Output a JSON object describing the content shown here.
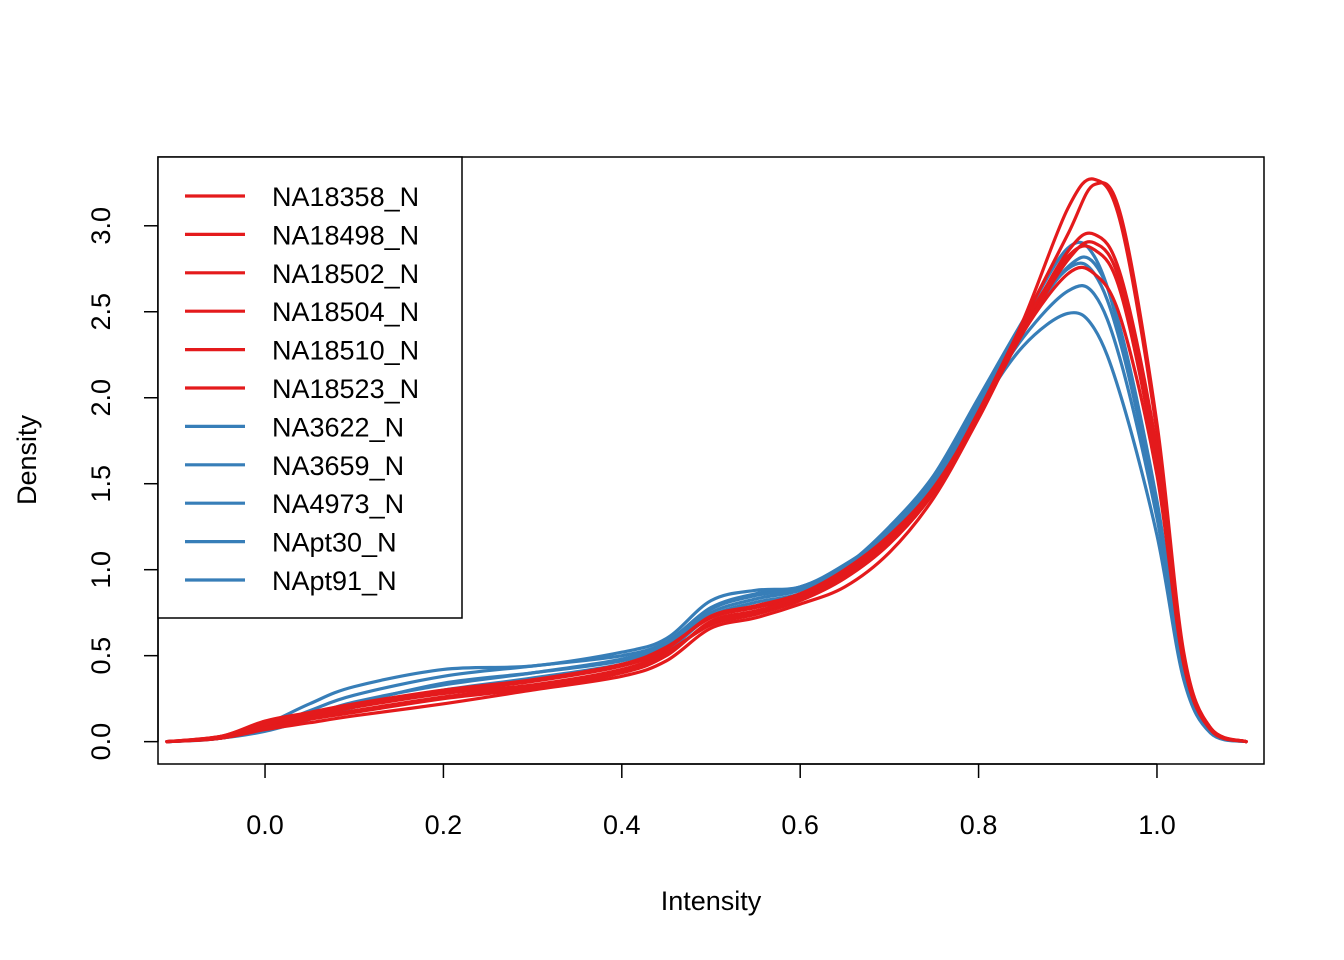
{
  "chart_data": {
    "type": "line",
    "xlabel": "Intensity",
    "ylabel": "Density",
    "xlim": [
      -0.12,
      1.12
    ],
    "ylim": [
      -0.13,
      3.4
    ],
    "x_ticks": [
      0.0,
      0.2,
      0.4,
      0.6,
      0.8,
      1.0
    ],
    "x_tick_labels": [
      "0.0",
      "0.2",
      "0.4",
      "0.6",
      "0.8",
      "1.0"
    ],
    "y_ticks": [
      0.0,
      0.5,
      1.0,
      1.5,
      2.0,
      2.5,
      3.0
    ],
    "y_tick_labels": [
      "0.0",
      "0.5",
      "1.0",
      "1.5",
      "2.0",
      "2.5",
      "3.0"
    ],
    "grid": false,
    "legend_position": "top-left",
    "colors": {
      "group_a": "#e41a1c",
      "group_b": "#377eb8"
    },
    "series": [
      {
        "name": "NA18358_N",
        "color": "#e41a1c",
        "x": [
          -0.11,
          -0.05,
          0.0,
          0.05,
          0.1,
          0.2,
          0.3,
          0.4,
          0.45,
          0.5,
          0.55,
          0.6,
          0.65,
          0.7,
          0.75,
          0.8,
          0.85,
          0.9,
          0.93,
          0.96,
          1.0,
          1.03,
          1.06,
          1.1
        ],
        "y": [
          0.0,
          0.02,
          0.09,
          0.15,
          0.2,
          0.28,
          0.33,
          0.42,
          0.52,
          0.68,
          0.74,
          0.82,
          0.95,
          1.15,
          1.45,
          1.9,
          2.45,
          3.1,
          3.27,
          3.0,
          1.8,
          0.5,
          0.08,
          0.0
        ]
      },
      {
        "name": "NA18498_N",
        "color": "#e41a1c",
        "x": [
          -0.11,
          -0.05,
          0.0,
          0.05,
          0.1,
          0.2,
          0.3,
          0.4,
          0.45,
          0.5,
          0.55,
          0.6,
          0.65,
          0.7,
          0.75,
          0.8,
          0.85,
          0.9,
          0.93,
          0.96,
          1.0,
          1.03,
          1.06,
          1.1
        ],
        "y": [
          0.0,
          0.03,
          0.12,
          0.17,
          0.22,
          0.3,
          0.36,
          0.45,
          0.55,
          0.72,
          0.78,
          0.84,
          0.98,
          1.18,
          1.47,
          1.9,
          2.4,
          2.85,
          2.95,
          2.7,
          1.7,
          0.5,
          0.08,
          0.0
        ]
      },
      {
        "name": "NA18502_N",
        "color": "#e41a1c",
        "x": [
          -0.11,
          -0.05,
          0.0,
          0.05,
          0.1,
          0.2,
          0.3,
          0.4,
          0.45,
          0.5,
          0.55,
          0.6,
          0.65,
          0.7,
          0.75,
          0.8,
          0.85,
          0.9,
          0.93,
          0.96,
          1.0,
          1.03,
          1.06,
          1.1
        ],
        "y": [
          0.0,
          0.02,
          0.07,
          0.11,
          0.15,
          0.22,
          0.3,
          0.38,
          0.47,
          0.66,
          0.72,
          0.8,
          0.9,
          1.1,
          1.42,
          1.88,
          2.38,
          2.72,
          2.72,
          2.45,
          1.55,
          0.45,
          0.07,
          0.0
        ]
      },
      {
        "name": "NA18504_N",
        "color": "#e41a1c",
        "x": [
          -0.11,
          -0.05,
          0.0,
          0.05,
          0.1,
          0.2,
          0.3,
          0.4,
          0.45,
          0.5,
          0.55,
          0.6,
          0.65,
          0.7,
          0.75,
          0.8,
          0.85,
          0.9,
          0.93,
          0.96,
          1.0,
          1.03,
          1.06,
          1.1
        ],
        "y": [
          0.0,
          0.02,
          0.08,
          0.13,
          0.17,
          0.25,
          0.31,
          0.4,
          0.5,
          0.7,
          0.76,
          0.83,
          0.96,
          1.16,
          1.46,
          1.92,
          2.44,
          2.95,
          3.24,
          3.05,
          1.85,
          0.52,
          0.08,
          0.0
        ]
      },
      {
        "name": "NA18510_N",
        "color": "#e41a1c",
        "x": [
          -0.11,
          -0.05,
          0.0,
          0.05,
          0.1,
          0.2,
          0.3,
          0.4,
          0.45,
          0.5,
          0.55,
          0.6,
          0.65,
          0.7,
          0.75,
          0.8,
          0.85,
          0.9,
          0.93,
          0.96,
          1.0,
          1.03,
          1.06,
          1.1
        ],
        "y": [
          0.0,
          0.03,
          0.1,
          0.16,
          0.21,
          0.29,
          0.35,
          0.44,
          0.54,
          0.73,
          0.79,
          0.86,
          1.0,
          1.2,
          1.48,
          1.9,
          2.38,
          2.8,
          2.9,
          2.65,
          1.65,
          0.48,
          0.08,
          0.0
        ]
      },
      {
        "name": "NA18523_N",
        "color": "#e41a1c",
        "x": [
          -0.11,
          -0.05,
          0.0,
          0.05,
          0.1,
          0.2,
          0.3,
          0.4,
          0.45,
          0.5,
          0.55,
          0.6,
          0.65,
          0.7,
          0.75,
          0.8,
          0.85,
          0.9,
          0.93,
          0.96,
          1.0,
          1.03,
          1.06,
          1.1
        ],
        "y": [
          0.0,
          0.03,
          0.11,
          0.14,
          0.18,
          0.26,
          0.32,
          0.41,
          0.51,
          0.69,
          0.75,
          0.85,
          0.97,
          1.17,
          1.47,
          1.91,
          2.42,
          2.82,
          2.86,
          2.6,
          1.6,
          0.47,
          0.07,
          0.0
        ]
      },
      {
        "name": "NA3622_N",
        "color": "#377eb8",
        "x": [
          -0.11,
          -0.05,
          0.0,
          0.05,
          0.1,
          0.2,
          0.3,
          0.4,
          0.45,
          0.5,
          0.55,
          0.6,
          0.65,
          0.7,
          0.75,
          0.8,
          0.85,
          0.9,
          0.93,
          0.96,
          1.0,
          1.03,
          1.06,
          1.1
        ],
        "y": [
          0.0,
          0.02,
          0.08,
          0.18,
          0.27,
          0.38,
          0.44,
          0.5,
          0.58,
          0.78,
          0.86,
          0.9,
          1.02,
          1.25,
          1.55,
          1.98,
          2.42,
          2.75,
          2.72,
          2.3,
          1.35,
          0.4,
          0.06,
          0.0
        ]
      },
      {
        "name": "NA3659_N",
        "color": "#377eb8",
        "x": [
          -0.11,
          -0.05,
          0.0,
          0.05,
          0.1,
          0.2,
          0.3,
          0.4,
          0.45,
          0.5,
          0.55,
          0.6,
          0.65,
          0.7,
          0.75,
          0.8,
          0.85,
          0.9,
          0.93,
          0.96,
          1.0,
          1.03,
          1.06,
          1.1
        ],
        "y": [
          0.0,
          0.02,
          0.1,
          0.22,
          0.32,
          0.42,
          0.44,
          0.52,
          0.6,
          0.82,
          0.88,
          0.9,
          1.03,
          1.22,
          1.52,
          1.95,
          2.35,
          2.62,
          2.6,
          2.2,
          1.3,
          0.38,
          0.06,
          0.0
        ]
      },
      {
        "name": "NA4973_N",
        "color": "#377eb8",
        "x": [
          -0.11,
          -0.05,
          0.0,
          0.05,
          0.1,
          0.2,
          0.3,
          0.4,
          0.45,
          0.5,
          0.55,
          0.6,
          0.65,
          0.7,
          0.75,
          0.8,
          0.85,
          0.9,
          0.93,
          0.96,
          1.0,
          1.03,
          1.06,
          1.1
        ],
        "y": [
          0.0,
          0.02,
          0.07,
          0.14,
          0.22,
          0.34,
          0.4,
          0.47,
          0.56,
          0.75,
          0.83,
          0.88,
          1.0,
          1.22,
          1.55,
          2.0,
          2.45,
          2.87,
          2.82,
          2.35,
          1.38,
          0.42,
          0.06,
          0.0
        ]
      },
      {
        "name": "NApt30_N",
        "color": "#377eb8",
        "x": [
          -0.11,
          -0.05,
          0.0,
          0.05,
          0.1,
          0.2,
          0.3,
          0.4,
          0.45,
          0.5,
          0.55,
          0.6,
          0.65,
          0.7,
          0.75,
          0.8,
          0.85,
          0.9,
          0.93,
          0.96,
          1.0,
          1.03,
          1.06,
          1.1
        ],
        "y": [
          0.0,
          0.02,
          0.06,
          0.13,
          0.2,
          0.3,
          0.37,
          0.45,
          0.53,
          0.73,
          0.81,
          0.86,
          0.98,
          1.2,
          1.5,
          1.93,
          2.3,
          2.49,
          2.4,
          2.0,
          1.2,
          0.36,
          0.05,
          0.0
        ]
      },
      {
        "name": "NApt91_N",
        "color": "#377eb8",
        "x": [
          -0.11,
          -0.05,
          0.0,
          0.05,
          0.1,
          0.2,
          0.3,
          0.4,
          0.45,
          0.5,
          0.55,
          0.6,
          0.65,
          0.7,
          0.75,
          0.8,
          0.85,
          0.9,
          0.93,
          0.96,
          1.0,
          1.03,
          1.06,
          1.1
        ],
        "y": [
          0.0,
          0.02,
          0.07,
          0.15,
          0.23,
          0.33,
          0.4,
          0.48,
          0.57,
          0.77,
          0.85,
          0.89,
          1.01,
          1.24,
          1.54,
          1.97,
          2.4,
          2.76,
          2.78,
          2.38,
          1.4,
          0.42,
          0.06,
          0.0
        ]
      }
    ]
  }
}
